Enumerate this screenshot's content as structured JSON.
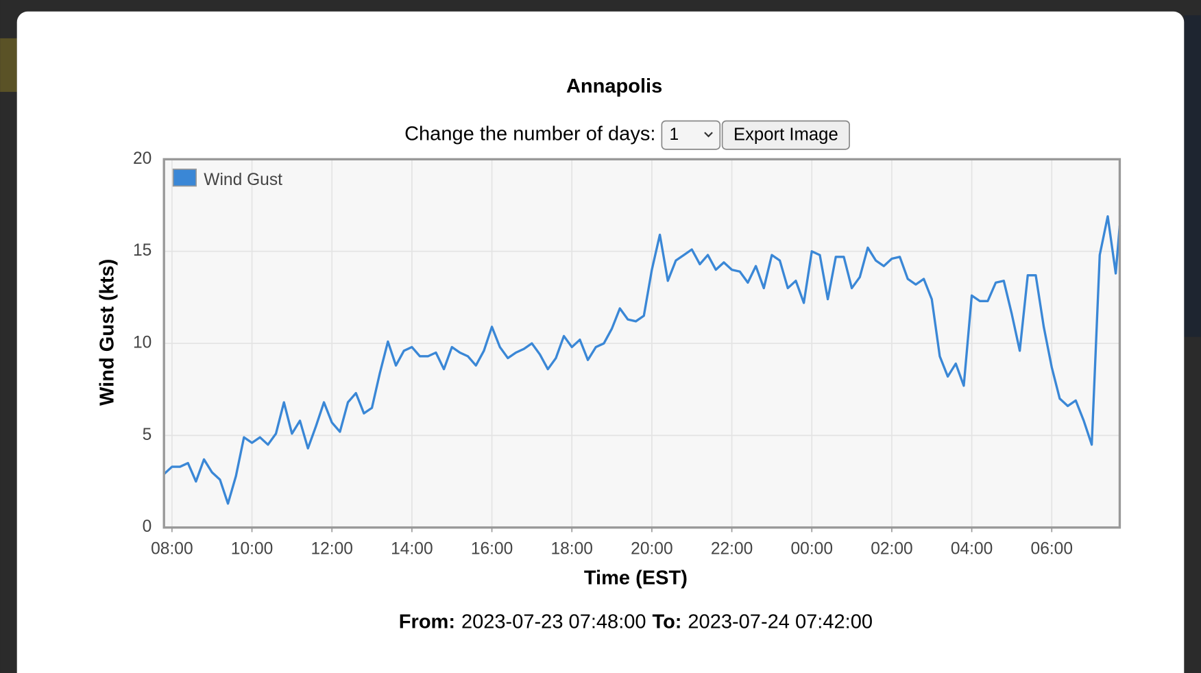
{
  "chart_data": {
    "type": "line",
    "title": "Annapolis",
    "x_label": "Time (EST)",
    "y_label": "Wind Gust (kts)",
    "x": [
      7.8,
      8,
      8.2,
      8.4,
      8.6,
      8.8,
      9,
      9.2,
      9.4,
      9.6,
      9.8,
      10,
      10.2,
      10.4,
      10.6,
      10.8,
      11,
      11.2,
      11.4,
      11.6,
      11.8,
      12,
      12.2,
      12.4,
      12.6,
      12.8,
      13,
      13.2,
      13.4,
      13.6,
      13.8,
      14,
      14.2,
      14.4,
      14.6,
      14.8,
      15,
      15.2,
      15.4,
      15.6,
      15.8,
      16,
      16.2,
      16.4,
      16.6,
      16.8,
      17,
      17.2,
      17.4,
      17.6,
      17.8,
      18,
      18.2,
      18.4,
      18.6,
      18.8,
      19,
      19.2,
      19.4,
      19.6,
      19.8,
      20,
      20.2,
      20.4,
      20.6,
      20.8,
      21,
      21.2,
      21.4,
      21.6,
      21.8,
      22,
      22.2,
      22.4,
      22.6,
      22.8,
      23,
      23.2,
      23.4,
      23.6,
      23.8,
      24,
      24.2,
      24.4,
      24.6,
      24.8,
      25,
      25.2,
      25.4,
      25.6,
      25.8,
      26,
      26.2,
      26.4,
      26.6,
      26.8,
      27,
      27.2,
      27.4,
      27.6,
      27.8,
      28,
      28.2,
      28.4,
      28.6,
      28.8,
      29,
      29.2,
      29.4,
      29.6,
      29.8,
      30,
      30.2,
      30.4,
      30.6,
      30.8,
      31,
      31.2,
      31.4,
      31.6,
      31.7
    ],
    "series": [
      {
        "name": "Wind Gust",
        "color": "#3a87d6",
        "values": [
          2.9,
          3.3,
          3.3,
          3.5,
          2.5,
          3.7,
          3.0,
          2.6,
          1.3,
          2.8,
          4.9,
          4.6,
          4.9,
          4.5,
          5.1,
          6.8,
          5.1,
          5.8,
          4.3,
          5.5,
          6.8,
          5.7,
          5.2,
          6.8,
          7.3,
          6.2,
          6.5,
          8.4,
          10.1,
          8.8,
          9.6,
          9.8,
          9.3,
          9.3,
          9.5,
          8.6,
          9.8,
          9.5,
          9.3,
          8.8,
          9.6,
          10.9,
          9.8,
          9.2,
          9.5,
          9.7,
          10.0,
          9.4,
          8.6,
          9.2,
          10.4,
          9.8,
          10.2,
          9.1,
          9.8,
          10.0,
          10.8,
          11.9,
          11.3,
          11.2,
          11.5,
          14.0,
          15.9,
          13.4,
          14.5,
          14.8,
          15.1,
          14.3,
          14.8,
          14.0,
          14.4,
          14.0,
          13.9,
          13.3,
          14.2,
          13.0,
          14.8,
          14.5,
          13.0,
          13.4,
          12.2,
          15.0,
          14.8,
          12.4,
          14.7,
          14.7,
          13.0,
          13.6,
          15.2,
          14.5,
          14.2,
          14.6,
          14.7,
          13.5,
          13.2,
          13.5,
          12.4,
          9.3,
          8.2,
          8.9,
          7.7,
          12.6,
          12.3,
          12.3,
          13.3,
          13.4,
          11.6,
          9.6,
          13.7,
          13.7,
          10.9,
          8.7,
          7.0,
          6.6,
          6.9,
          5.8,
          4.5,
          14.8,
          16.9,
          13.8,
          16.4
        ]
      }
    ],
    "xlim": [
      7.8,
      31.7
    ],
    "xticks": [
      {
        "value": 8,
        "label": "08:00"
      },
      {
        "value": 10,
        "label": "10:00"
      },
      {
        "value": 12,
        "label": "12:00"
      },
      {
        "value": 14,
        "label": "14:00"
      },
      {
        "value": 16,
        "label": "16:00"
      },
      {
        "value": 18,
        "label": "18:00"
      },
      {
        "value": 20,
        "label": "20:00"
      },
      {
        "value": 22,
        "label": "22:00"
      },
      {
        "value": 24,
        "label": "00:00"
      },
      {
        "value": 26,
        "label": "02:00"
      },
      {
        "value": 28,
        "label": "04:00"
      },
      {
        "value": 30,
        "label": "06:00"
      }
    ],
    "ylim": [
      0,
      20
    ],
    "yticks": [
      0,
      5,
      10,
      15,
      20
    ],
    "grid": true,
    "legend": "top-left"
  },
  "controls": {
    "label": "Change the number of days:",
    "select_value": "1",
    "button": "Export Image"
  },
  "footer": {
    "from_label": "From:",
    "from_value": "2023-07-23 07:48:00",
    "to_label": "To:",
    "to_value": "2023-07-24 07:42:00"
  }
}
